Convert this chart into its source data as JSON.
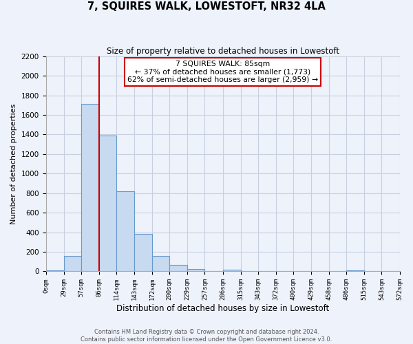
{
  "title": "7, SQUIRES WALK, LOWESTOFT, NR32 4LA",
  "subtitle": "Size of property relative to detached houses in Lowestoft",
  "xlabel": "Distribution of detached houses by size in Lowestoft",
  "ylabel": "Number of detached properties",
  "bin_edges": [
    0,
    29,
    57,
    86,
    114,
    143,
    172,
    200,
    229,
    257,
    286,
    315,
    343,
    372,
    400,
    429,
    458,
    486,
    515,
    543,
    572
  ],
  "bin_counts": [
    10,
    155,
    1710,
    1390,
    820,
    380,
    160,
    65,
    25,
    0,
    20,
    0,
    0,
    0,
    0,
    0,
    0,
    10,
    0,
    0
  ],
  "tick_labels": [
    "0sqm",
    "29sqm",
    "57sqm",
    "86sqm",
    "114sqm",
    "143sqm",
    "172sqm",
    "200sqm",
    "229sqm",
    "257sqm",
    "286sqm",
    "315sqm",
    "343sqm",
    "372sqm",
    "400sqm",
    "429sqm",
    "458sqm",
    "486sqm",
    "515sqm",
    "543sqm",
    "572sqm"
  ],
  "bar_color": "#c8daf0",
  "bar_edge_color": "#6699cc",
  "property_line_x": 86,
  "property_line_color": "#cc0000",
  "ylim": [
    0,
    2200
  ],
  "yticks": [
    0,
    200,
    400,
    600,
    800,
    1000,
    1200,
    1400,
    1600,
    1800,
    2000,
    2200
  ],
  "annotation_line1": "7 SQUIRES WALK: 85sqm",
  "annotation_line2": "← 37% of detached houses are smaller (1,773)",
  "annotation_line3": "62% of semi-detached houses are larger (2,959) →",
  "footer_line1": "Contains HM Land Registry data © Crown copyright and database right 2024.",
  "footer_line2": "Contains public sector information licensed under the Open Government Licence v3.0.",
  "background_color": "#eef2fb",
  "grid_color": "#c8d0e0"
}
